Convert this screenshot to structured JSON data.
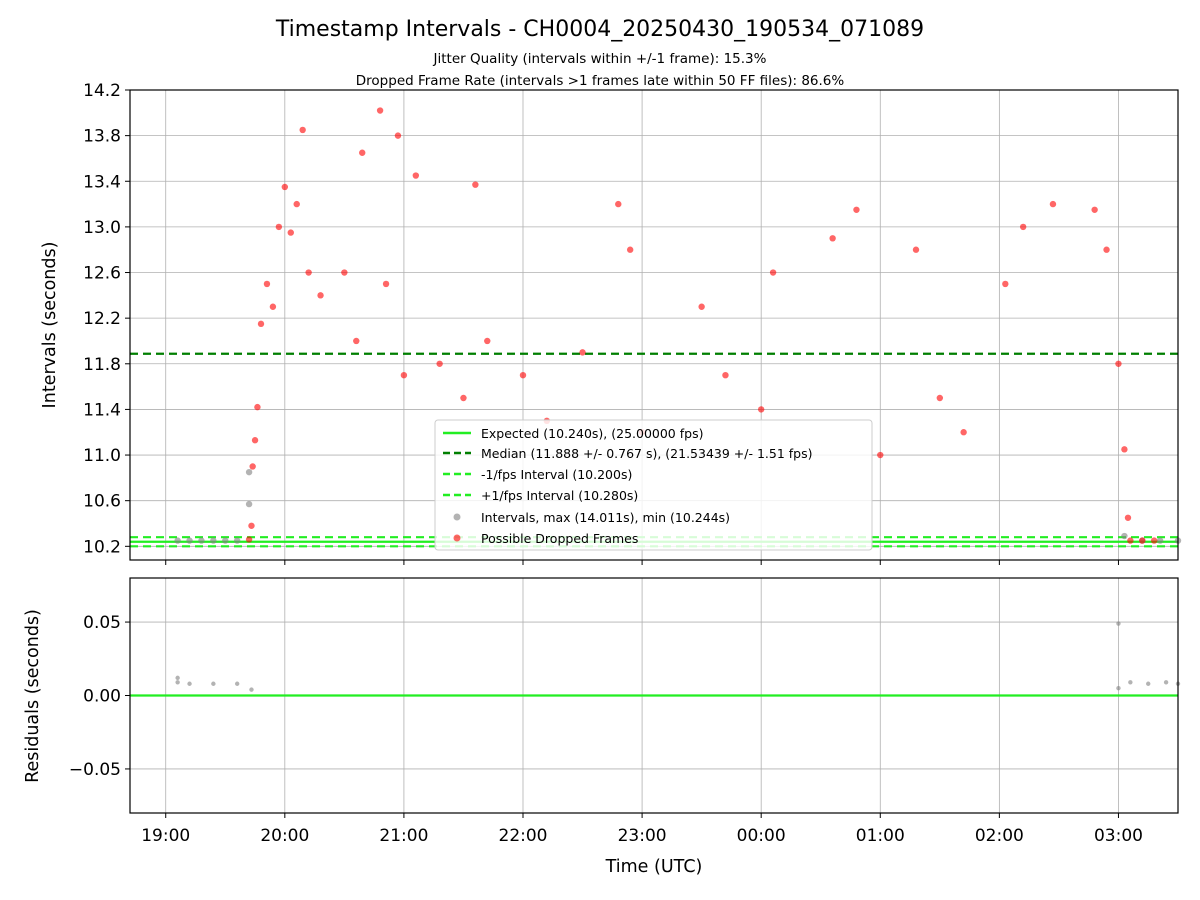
{
  "chart_data": [
    {
      "panel": "intervals",
      "type": "scatter",
      "title": "Timestamp Intervals - CH0004_20250430_190534_071089",
      "subtitle_lines": [
        "Jitter Quality (intervals within +/-1 frame): 15.3%",
        "Dropped Frame Rate (intervals >1 frames late within 50 FF files): 86.6%"
      ],
      "ylabel": "Intervals (seconds)",
      "ylim": [
        10.08,
        14.2
      ],
      "xlim_hours": [
        18.7,
        27.5
      ],
      "y_ticks": [
        "10.2",
        "10.6",
        "11.0",
        "11.4",
        "11.8",
        "12.2",
        "12.6",
        "13.0",
        "13.4",
        "13.8",
        "14.2"
      ],
      "grid": true,
      "legend_placement": "lower center",
      "legend": [
        "Expected (10.240s), (25.00000 fps)",
        "Median (11.888 +/- 0.767 s), (21.53439 +/- 1.51 fps)",
        "-1/fps Interval (10.200s)",
        "+1/fps Interval (10.280s)",
        "Intervals, max (14.011s), min (10.244s)",
        "Possible Dropped Frames"
      ],
      "reference_lines": [
        {
          "y": 10.24,
          "color": "#22ee22",
          "style": "solid"
        },
        {
          "y": 11.888,
          "color": "#007f00",
          "style": "dashed"
        },
        {
          "y": 10.2,
          "color": "#22ee22",
          "style": "dashed"
        },
        {
          "y": 10.28,
          "color": "#22ee22",
          "style": "dashed"
        }
      ],
      "series": [
        {
          "color": "#808080",
          "points": [
            [
              19.1,
              10.25
            ],
            [
              19.2,
              10.25
            ],
            [
              19.3,
              10.25
            ],
            [
              19.4,
              10.25
            ],
            [
              19.5,
              10.25
            ],
            [
              19.6,
              10.25
            ],
            [
              19.7,
              10.85
            ],
            [
              19.7,
              10.57
            ],
            [
              27.05,
              10.29
            ],
            [
              27.2,
              10.25
            ],
            [
              27.35,
              10.25
            ],
            [
              27.5,
              10.25
            ]
          ]
        },
        {
          "color": "#ff0000",
          "points": [
            [
              19.7,
              10.26
            ],
            [
              19.72,
              10.38
            ],
            [
              19.73,
              10.9
            ],
            [
              19.75,
              11.13
            ],
            [
              19.77,
              11.42
            ],
            [
              19.8,
              12.15
            ],
            [
              19.85,
              12.5
            ],
            [
              19.9,
              12.3
            ],
            [
              19.95,
              13.0
            ],
            [
              20.0,
              13.35
            ],
            [
              20.05,
              12.95
            ],
            [
              20.1,
              13.2
            ],
            [
              20.15,
              13.85
            ],
            [
              20.2,
              12.6
            ],
            [
              20.3,
              12.4
            ],
            [
              20.5,
              12.6
            ],
            [
              20.6,
              12.0
            ],
            [
              20.65,
              13.65
            ],
            [
              20.8,
              14.02
            ],
            [
              20.85,
              12.5
            ],
            [
              20.95,
              13.8
            ],
            [
              21.0,
              11.7
            ],
            [
              21.1,
              13.45
            ],
            [
              21.3,
              11.8
            ],
            [
              21.5,
              11.5
            ],
            [
              21.6,
              13.37
            ],
            [
              21.7,
              12.0
            ],
            [
              22.0,
              11.7
            ],
            [
              22.2,
              11.3
            ],
            [
              22.5,
              11.9
            ],
            [
              22.8,
              13.2
            ],
            [
              22.9,
              12.8
            ],
            [
              23.0,
              11.2
            ],
            [
              23.5,
              12.3
            ],
            [
              23.7,
              11.7
            ],
            [
              24.0,
              11.4
            ],
            [
              24.1,
              12.6
            ],
            [
              24.6,
              12.9
            ],
            [
              24.8,
              13.15
            ],
            [
              25.0,
              11.0
            ],
            [
              25.3,
              12.8
            ],
            [
              25.5,
              11.5
            ],
            [
              25.7,
              11.2
            ],
            [
              26.05,
              12.5
            ],
            [
              26.2,
              13.0
            ],
            [
              26.45,
              13.2
            ],
            [
              26.8,
              13.15
            ],
            [
              26.9,
              12.8
            ],
            [
              27.0,
              11.8
            ],
            [
              27.05,
              11.05
            ],
            [
              27.08,
              10.45
            ],
            [
              27.1,
              10.25
            ],
            [
              27.2,
              10.25
            ],
            [
              27.3,
              10.25
            ]
          ]
        }
      ]
    },
    {
      "panel": "residuals",
      "type": "scatter",
      "xlabel": "Time (UTC)",
      "ylabel": "Residuals (seconds)",
      "ylim": [
        -0.08,
        0.08
      ],
      "xlim_hours": [
        18.7,
        27.5
      ],
      "y_ticks": [
        "0.05",
        "0.00",
        "−0.05"
      ],
      "x_ticks": [
        "19:00",
        "20:00",
        "21:00",
        "22:00",
        "23:00",
        "00:00",
        "01:00",
        "02:00",
        "03:00"
      ],
      "grid": true,
      "reference_lines": [
        {
          "y": 0.0,
          "color": "#22ee22",
          "style": "solid"
        }
      ],
      "series": [
        {
          "color": "#808080",
          "points": [
            [
              19.1,
              0.012
            ],
            [
              19.1,
              0.009
            ],
            [
              19.2,
              0.008
            ],
            [
              19.4,
              0.008
            ],
            [
              19.6,
              0.008
            ],
            [
              19.72,
              0.004
            ],
            [
              27.0,
              0.049
            ],
            [
              27.0,
              0.005
            ],
            [
              27.1,
              0.009
            ],
            [
              27.25,
              0.008
            ],
            [
              27.4,
              0.009
            ],
            [
              27.5,
              0.008
            ]
          ]
        }
      ]
    }
  ]
}
